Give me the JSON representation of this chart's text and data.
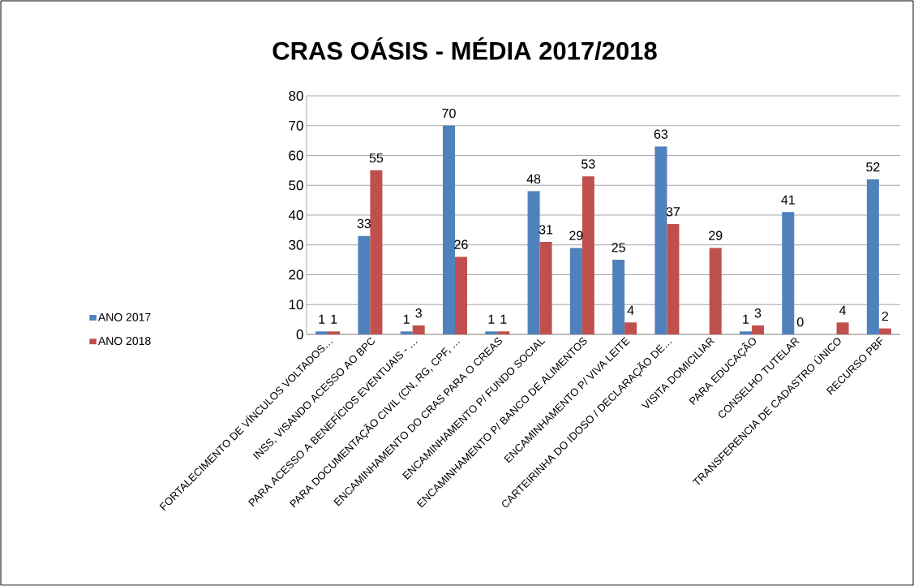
{
  "chart_data": {
    "type": "bar",
    "title": "CRAS OÁSIS - MÉDIA 2017/2018",
    "categories": [
      "FORTALECIMENTO DE VÍNCULOS VOLTADOS…",
      "INSS, VISANDO ACESSO AO BPC",
      "PARA ACESSO A BENEFÍCIOS EVENTUAIS - …",
      "PARA DOCUMENTAÇÃO CIVIL (CN, RG, CPF, …",
      "ENCAMINHAMENTO DO CRAS PARA O CREAS",
      "ENCAMINHAMENTO P/ FUNDO SOCIAL",
      "ENCAMINHAMENTO P/ BANCO DE ALIMENTOS",
      "ENCAMINHAMENTO P/ VIVA LEITE",
      "CARTEIRINHA DO IDOSO / DECLARAÇÃO DE…",
      "VISITA DOMICILIAR",
      "PARA EDUCAÇÃO",
      "CONSELHO TUTELAR",
      "TRANSFERENCIA DE CADASTRO ÚNICO",
      "RECURSO PBF"
    ],
    "series": [
      {
        "name": "ANO 2017",
        "color": "#4f81bd",
        "values": [
          1,
          33,
          1,
          70,
          1,
          48,
          29,
          25,
          63,
          null,
          1,
          41,
          null,
          52
        ]
      },
      {
        "name": "ANO 2018",
        "color": "#c0504d",
        "values": [
          1,
          55,
          3,
          26,
          1,
          31,
          53,
          4,
          37,
          29,
          3,
          0,
          4,
          2
        ]
      }
    ],
    "ylim": [
      0,
      80
    ],
    "yticks": [
      0,
      10,
      20,
      30,
      40,
      50,
      60,
      70,
      80
    ],
    "grid": "y",
    "legend": "left",
    "data_labels": true
  }
}
